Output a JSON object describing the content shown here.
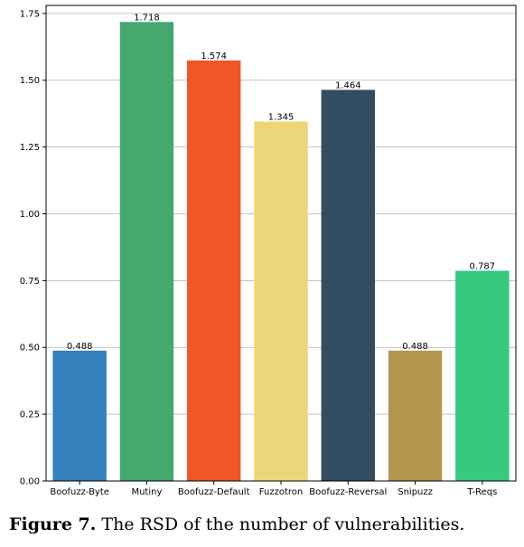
{
  "chart_data": {
    "type": "bar",
    "title": "",
    "xlabel": "",
    "ylabel": "",
    "categories": [
      "Boofuzz-Byte",
      "Mutiny",
      "Boofuzz-Default",
      "Fuzzotron",
      "Boofuzz-Reversal",
      "Snipuzz",
      "T-Reqs"
    ],
    "values": [
      0.488,
      1.718,
      1.574,
      1.345,
      1.464,
      0.488,
      0.787
    ],
    "value_labels": [
      "0.488",
      "1.718",
      "1.574",
      "1.345",
      "1.464",
      "0.488",
      "0.787"
    ],
    "colors": [
      "#3380bd",
      "#44a86f",
      "#f05628",
      "#edd677",
      "#324d61",
      "#b3964e",
      "#36c97f"
    ],
    "ylim": [
      0,
      1.78
    ],
    "yticks": [
      0.0,
      0.25,
      0.5,
      0.75,
      1.0,
      1.25,
      1.5,
      1.75
    ],
    "ytick_labels": [
      "0.00",
      "0.25",
      "0.50",
      "0.75",
      "1.00",
      "1.25",
      "1.50",
      "1.75"
    ],
    "grid": "horizontal",
    "legend": "none"
  },
  "caption": {
    "label": "Figure 7.",
    "text": " The RSD of the number of vulnerabilities."
  }
}
